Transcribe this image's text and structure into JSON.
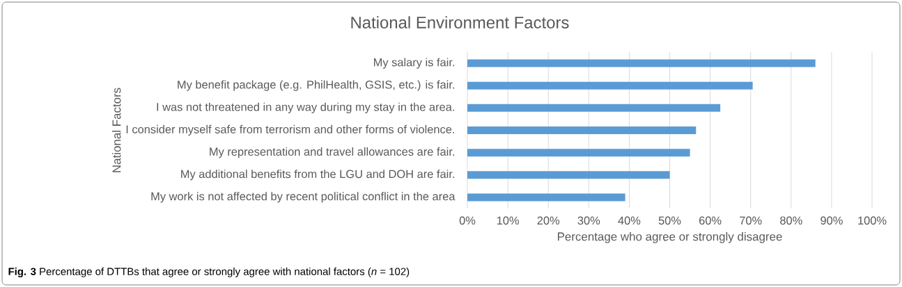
{
  "chart_data": {
    "type": "bar",
    "orientation": "horizontal",
    "title": "National Environment Factors",
    "xlabel": "Percentage who agree or strongly disagree",
    "ylabel": "National  Factors",
    "categories": [
      "My salary is fair.",
      "My benefit package (e.g. PhilHealth, GSIS, etc.) is fair.",
      "I was not threatened in any way during my stay in the area.",
      "I consider myself safe from terrorism and other forms of violence.",
      "My representation and travel allowances are fair.",
      "My additional benefits from the LGU and DOH are fair.",
      "My work is not affected by recent political conflict in the area"
    ],
    "values": [
      86,
      70.5,
      62.5,
      56.5,
      55,
      50,
      39
    ],
    "color": "#5b9bd5",
    "xlim": [
      0,
      100
    ],
    "xticks": [
      {
        "value": 0,
        "label": "0%"
      },
      {
        "value": 10,
        "label": "10%"
      },
      {
        "value": 20,
        "label": "20%"
      },
      {
        "value": 30,
        "label": "30%"
      },
      {
        "value": 40,
        "label": "40%"
      },
      {
        "value": 50,
        "label": "50%"
      },
      {
        "value": 60,
        "label": "60%"
      },
      {
        "value": 70,
        "label": "70%"
      },
      {
        "value": 80,
        "label": "80%"
      },
      {
        "value": 90,
        "label": "90%"
      },
      {
        "value": 100,
        "label": "100%"
      }
    ],
    "grid": "x",
    "annotations": [
      "**Fig. 3** Percentage of DTTBs that agree or strongly agree with national factors (*n* = 102)"
    ]
  }
}
